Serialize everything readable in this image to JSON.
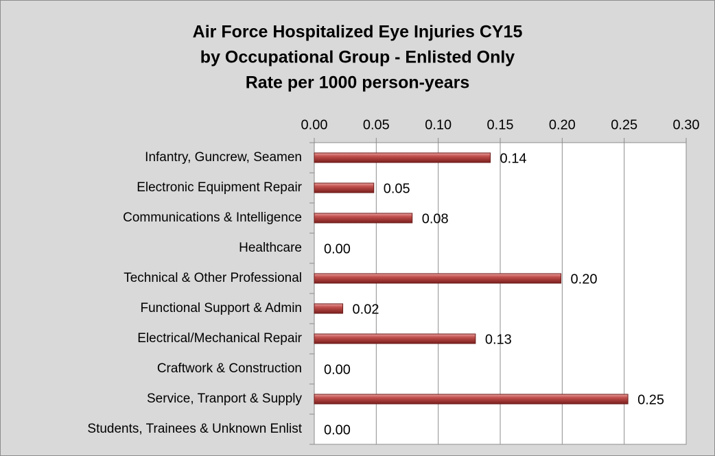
{
  "chart_data": {
    "type": "bar",
    "orientation": "horizontal",
    "title": [
      "Air Force Hospitalized Eye Injuries CY15",
      "by Occupational Group - Enlisted Only",
      "Rate per 1000 person-years"
    ],
    "categories": [
      "Infantry, Guncrew, Seamen",
      "Electronic Equipment Repair",
      "Communications & Intelligence",
      "Healthcare",
      "Technical & Other Professional",
      "Functional Support & Admin",
      "Electrical/Mechanical Repair",
      "Craftwork & Construction",
      "Service, Tranport & Supply",
      "Students, Trainees & Unknown Enlist"
    ],
    "values": [
      0.142,
      0.048,
      0.079,
      0,
      0.199,
      0.023,
      0.13,
      0,
      0.253,
      0
    ],
    "value_labels": [
      "0.14",
      "0.05",
      "0.08",
      "0.00",
      "0.20",
      "0.02",
      "0.13",
      "0.00",
      "0.25",
      "0.00"
    ],
    "color": "#c0504d",
    "xlim": [
      0,
      0.3
    ],
    "xticks": [
      {
        "value": 0,
        "label": "0.00"
      },
      {
        "value": 0.05,
        "label": "0.05"
      },
      {
        "value": 0.1,
        "label": "0.10"
      },
      {
        "value": 0.15,
        "label": "0.15"
      },
      {
        "value": 0.2,
        "label": "0.20"
      },
      {
        "value": 0.25,
        "label": "0.25"
      },
      {
        "value": 0.3,
        "label": "0.30"
      }
    ],
    "grid": true
  }
}
